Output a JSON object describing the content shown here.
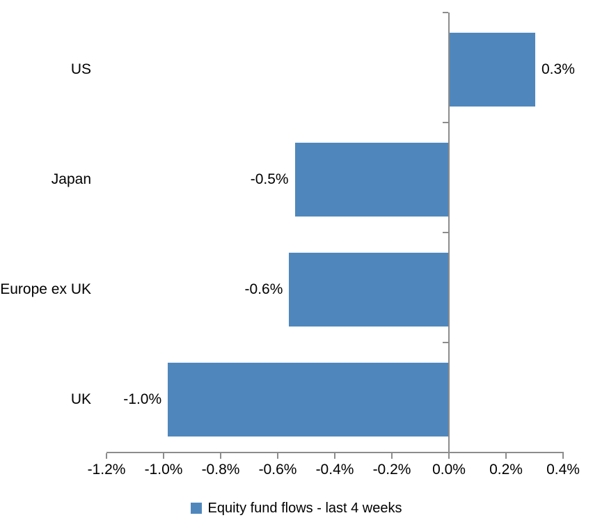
{
  "chart_data": {
    "type": "bar",
    "orientation": "horizontal",
    "title": "",
    "xlabel": "",
    "ylabel": "",
    "categories": [
      "US",
      "Japan",
      "Europe ex UK",
      "UK"
    ],
    "values": [
      0.3,
      -0.5,
      -0.6,
      -1.0
    ],
    "values_as_drawn": [
      0.3,
      -0.54,
      -0.56,
      -0.985
    ],
    "data_labels": [
      "0.3%",
      "-0.5%",
      "-0.6%",
      "-1.0%"
    ],
    "series_name": "Equity fund flows - last 4 weeks",
    "x_tick_labels": [
      "-1.2%",
      "-1.0%",
      "-0.8%",
      "-0.6%",
      "-0.4%",
      "-0.2%",
      "0.0%",
      "0.2%",
      "0.4%"
    ],
    "x_tick_values": [
      -1.2,
      -1.0,
      -0.8,
      -0.6,
      -0.4,
      -0.2,
      0.0,
      0.2,
      0.4
    ],
    "xlim": [
      -1.2,
      0.4
    ],
    "grid": false,
    "legend_position": "bottom-center",
    "colors": {
      "bar": "#4F87BD",
      "axis": "#8C8C8C",
      "text": "#000000",
      "background": "#FFFFFF"
    },
    "legend": {
      "marker": "square-icon",
      "label": "Equity fund flows - last 4 weeks"
    }
  }
}
